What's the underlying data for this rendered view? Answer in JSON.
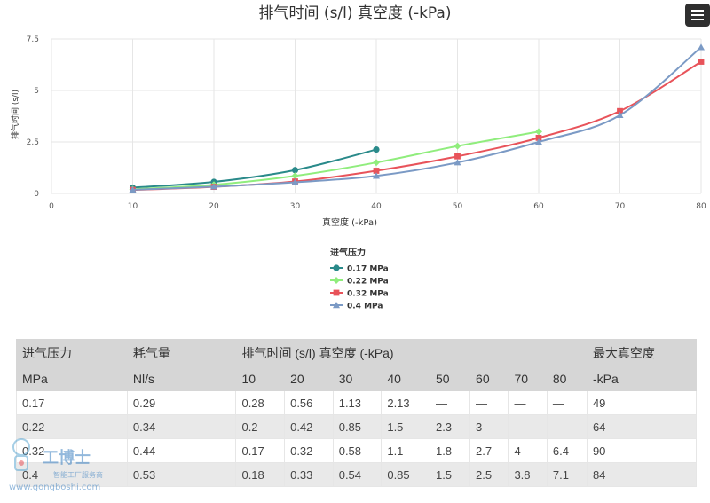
{
  "chart_data": {
    "type": "line",
    "title": "排气时间 (s/l) 真空度 (-kPa)",
    "xlabel": "真空度 (-kPa)",
    "ylabel": "排气时间 (s/l)",
    "xlim": [
      0,
      80
    ],
    "ylim": [
      0,
      7.5
    ],
    "x_ticks": [
      "0",
      "10",
      "20",
      "30",
      "40",
      "50",
      "60",
      "70",
      "80"
    ],
    "y_ticks": [
      "0",
      "2.5",
      "5",
      "7.5"
    ],
    "grid": true,
    "legend_title": "进气压力",
    "legend_position": "bottom",
    "series": [
      {
        "name": "0.17 MPa",
        "color": "#2a8a8a",
        "marker": "circle",
        "x": [
          10,
          20,
          30,
          40
        ],
        "values": [
          0.28,
          0.56,
          1.13,
          2.13
        ]
      },
      {
        "name": "0.22 MPa",
        "color": "#90ed7d",
        "marker": "diamond",
        "x": [
          10,
          20,
          30,
          40,
          50,
          60
        ],
        "values": [
          0.2,
          0.42,
          0.85,
          1.5,
          2.3,
          3
        ]
      },
      {
        "name": "0.32 MPa",
        "color": "#e8535a",
        "marker": "square",
        "x": [
          10,
          20,
          30,
          40,
          50,
          60,
          70,
          80
        ],
        "values": [
          0.17,
          0.32,
          0.58,
          1.1,
          1.8,
          2.7,
          4,
          6.4
        ]
      },
      {
        "name": "0.4 MPa",
        "color": "#7b9ac5",
        "marker": "triangle",
        "x": [
          10,
          20,
          30,
          40,
          50,
          60,
          70,
          80
        ],
        "values": [
          0.18,
          0.33,
          0.54,
          0.85,
          1.5,
          2.5,
          3.8,
          7.1
        ]
      }
    ]
  },
  "menu": {
    "icon": "hamburger-menu-icon"
  },
  "table": {
    "header1": [
      "进气压力",
      "耗气量",
      "排气时间 (s/l) 真空度 (-kPa)",
      "最大真空度"
    ],
    "header2": [
      "MPa",
      "Nl/s",
      "10",
      "20",
      "30",
      "40",
      "50",
      "60",
      "70",
      "80",
      "-kPa"
    ],
    "rows": [
      [
        "0.17",
        "0.29",
        "0.28",
        "0.56",
        "1.13",
        "2.13",
        "—",
        "—",
        "—",
        "—",
        "49"
      ],
      [
        "0.22",
        "0.34",
        "0.2",
        "0.42",
        "0.85",
        "1.5",
        "2.3",
        "3",
        "—",
        "—",
        "64"
      ],
      [
        "0.32",
        "0.44",
        "0.17",
        "0.32",
        "0.58",
        "1.1",
        "1.8",
        "2.7",
        "4",
        "6.4",
        "90"
      ],
      [
        "0.4",
        "0.53",
        "0.18",
        "0.33",
        "0.54",
        "0.85",
        "1.5",
        "2.5",
        "3.8",
        "7.1",
        "84"
      ]
    ]
  },
  "watermark": {
    "name": "工博士",
    "subtitle": "智能工厂服务商",
    "url": "www.gongboshi.com"
  }
}
